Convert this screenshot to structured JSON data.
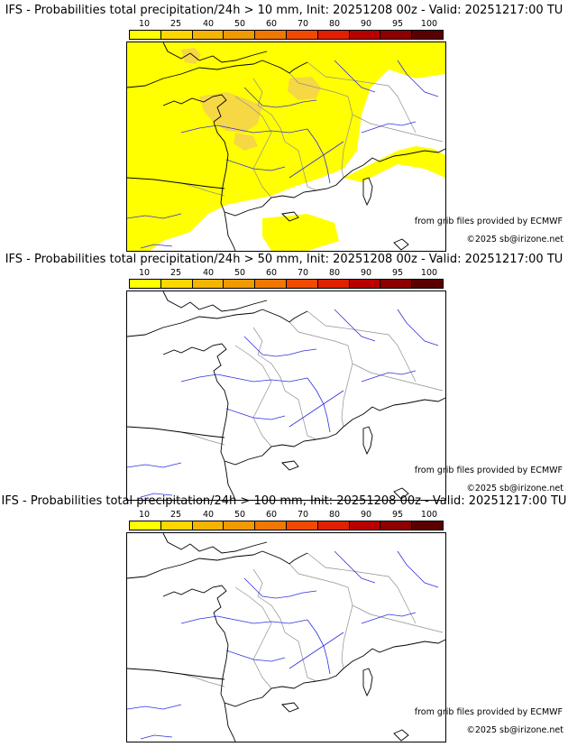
{
  "panels": [
    {
      "title": "IFS - Probabilities total precipitation/24h > 10 mm, Init: 20251208 00z - Valid: 20251217:00 TU",
      "has_precip": true
    },
    {
      "title": "IFS - Probabilities total precipitation/24h > 50 mm, Init: 20251208 00z - Valid: 20251217:00 TU",
      "has_precip": false
    },
    {
      "title": "IFS - Probabilities total precipitation/24h > 100 mm, Init: 20251208 00z - Valid: 20251217:00 TU",
      "has_precip": false
    }
  ],
  "scale": {
    "labels": [
      "10",
      "25",
      "40",
      "50",
      "60",
      "70",
      "80",
      "90",
      "95",
      "100"
    ],
    "colors": [
      "#ffff00",
      "#ffd700",
      "#f5b400",
      "#f09a00",
      "#f07800",
      "#f04a00",
      "#e02000",
      "#b80000",
      "#8c0000",
      "#5a0000"
    ]
  },
  "credits": {
    "source": "from grib files provided by ECMWF",
    "copyright": "©2025 sb@irizone.net"
  },
  "colors": {
    "coast": "#000000",
    "rivers": "#3030e0",
    "borders": "#909090",
    "precip_low": "#ffff00",
    "precip_mid": "#f5d050"
  }
}
